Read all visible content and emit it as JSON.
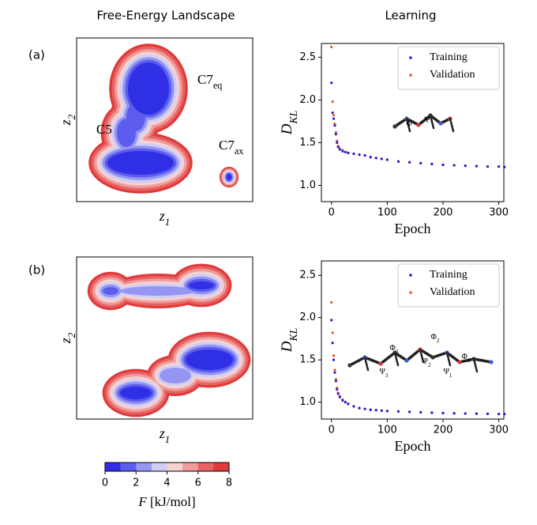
{
  "column_titles": [
    "Free-Energy Landscape",
    "Learning"
  ],
  "panel_labels": [
    "(a)",
    "(b)"
  ],
  "colorbar": {
    "lim": [
      0,
      8
    ],
    "ticks": [
      0,
      2,
      4,
      6,
      8
    ],
    "colors": [
      "#2f2fe6",
      "#5c5cee",
      "#9595f2",
      "#cfcff6",
      "#f6d2d2",
      "#f09c9c",
      "#e86464",
      "#e03a3a"
    ],
    "label": {
      "text": "F",
      "unit": "[kJ/mol]"
    }
  },
  "chart_data": [
    {
      "type": "contour",
      "x_label": {
        "text": "z",
        "sub": "1"
      },
      "y_label": {
        "text": "z",
        "sub": "2"
      },
      "annotations": [
        "C5",
        {
          "text": "C7",
          "sub": "eq"
        },
        {
          "text": "C7",
          "sub": "ax"
        }
      ]
    },
    {
      "type": "scatter",
      "x_label": "Epoch",
      "y_label": {
        "text": "D",
        "sub": "KL"
      },
      "x": [
        0,
        2,
        4,
        6,
        8,
        10,
        12,
        15,
        20,
        25,
        30,
        40,
        50,
        60,
        70,
        80,
        90,
        100,
        120,
        140,
        160,
        180,
        200,
        220,
        240,
        260,
        280,
        300,
        310
      ],
      "series": [
        {
          "name": "Training",
          "color": "#1f1fd6",
          "values": [
            2.2,
            1.85,
            1.78,
            1.7,
            1.6,
            1.5,
            1.45,
            1.42,
            1.4,
            1.39,
            1.38,
            1.37,
            1.36,
            1.35,
            1.33,
            1.32,
            1.31,
            1.3,
            1.28,
            1.27,
            1.26,
            1.25,
            1.24,
            1.235,
            1.23,
            1.225,
            1.22,
            1.22,
            1.215
          ]
        },
        {
          "name": "Validation",
          "color": "#e5533a",
          "values": [
            2.62,
            1.98,
            1.82,
            1.72,
            1.62,
            1.52,
            1.46,
            1.43,
            1.41,
            1.39,
            1.38,
            1.37,
            1.36,
            1.35,
            1.33,
            1.32,
            1.31,
            1.3,
            1.28,
            1.27,
            1.26,
            1.25,
            1.24,
            1.235,
            1.23,
            1.225,
            1.22,
            1.22,
            1.215
          ]
        }
      ],
      "xlim": [
        -18,
        309
      ],
      "ylim": [
        0.81,
        2.66
      ],
      "xticks": [
        0,
        100,
        200,
        300
      ],
      "yticks": [
        {
          "value": 1,
          "label": "1.0"
        },
        1.5,
        {
          "value": 2,
          "label": "2.0"
        },
        2.5
      ],
      "legend": "upper right",
      "molecule_labels": [
        "Φ",
        "Ψ"
      ]
    },
    {
      "type": "contour",
      "x_label": {
        "text": "z",
        "sub": "1"
      },
      "y_label": {
        "text": "z",
        "sub": "2"
      }
    },
    {
      "type": "scatter",
      "x_label": "Epoch",
      "y_label": {
        "text": "D",
        "sub": "KL"
      },
      "x": [
        0,
        2,
        4,
        6,
        8,
        10,
        12,
        15,
        20,
        25,
        30,
        40,
        50,
        60,
        70,
        80,
        90,
        100,
        120,
        140,
        160,
        180,
        200,
        220,
        240,
        260,
        280,
        300,
        310
      ],
      "series": [
        {
          "name": "Training",
          "color": "#1f1fd6",
          "values": [
            1.97,
            1.7,
            1.5,
            1.35,
            1.25,
            1.15,
            1.1,
            1.06,
            1.02,
            1.0,
            0.98,
            0.95,
            0.93,
            0.92,
            0.91,
            0.905,
            0.9,
            0.895,
            0.89,
            0.885,
            0.88,
            0.875,
            0.87,
            0.868,
            0.866,
            0.864,
            0.862,
            0.86,
            0.86
          ]
        },
        {
          "name": "Validation",
          "color": "#e5533a",
          "values": [
            2.18,
            1.82,
            1.55,
            1.38,
            1.27,
            1.17,
            1.11,
            1.07,
            1.03,
            1.0,
            0.98,
            0.95,
            0.93,
            0.92,
            0.91,
            0.905,
            0.9,
            0.895,
            0.89,
            0.885,
            0.88,
            0.875,
            0.87,
            0.868,
            0.866,
            0.864,
            0.862,
            0.86,
            0.86
          ]
        }
      ],
      "xlim": [
        -18,
        309
      ],
      "ylim": [
        0.8,
        2.67
      ],
      "xticks": [
        0,
        100,
        200,
        300
      ],
      "yticks": [
        {
          "value": 1,
          "label": "1.0"
        },
        1.5,
        {
          "value": 2,
          "label": "2.0"
        },
        2.5
      ],
      "legend": "upper right",
      "molecule_labels": [
        {
          "text": "Φ",
          "sub": "3"
        },
        {
          "text": "Ψ",
          "sub": "3"
        },
        {
          "text": "Φ",
          "sub": "2"
        },
        {
          "text": "Ψ",
          "sub": "2"
        },
        {
          "text": "Φ",
          "sub": "1"
        },
        {
          "text": "Ψ",
          "sub": "1"
        }
      ]
    }
  ]
}
